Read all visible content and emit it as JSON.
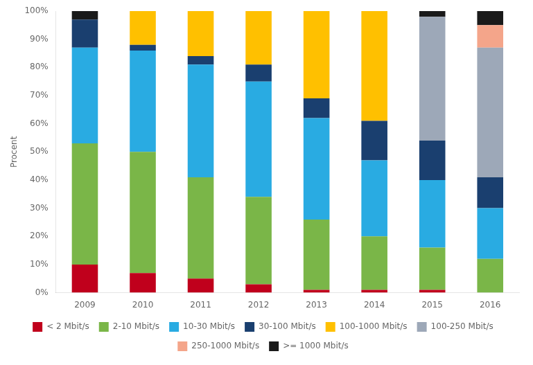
{
  "chart_data": {
    "type": "bar",
    "stacked": true,
    "categories": [
      "2009",
      "2010",
      "2011",
      "2012",
      "2013",
      "2014",
      "2015",
      "2016"
    ],
    "series": [
      {
        "name": "< 2 Mbit/s",
        "color": "#c0001c",
        "values": [
          10,
          7,
          5,
          3,
          1,
          1,
          1,
          0
        ]
      },
      {
        "name": "2-10 Mbit/s",
        "color": "#7ab648",
        "values": [
          43,
          43,
          36,
          31,
          25,
          19,
          15,
          12
        ]
      },
      {
        "name": "10-30 Mbit/s",
        "color": "#29abe2",
        "values": [
          34,
          36,
          40,
          41,
          36,
          27,
          24,
          18
        ]
      },
      {
        "name": "30-100 Mbit/s",
        "color": "#1a3f6f",
        "values": [
          10,
          2,
          3,
          6,
          7,
          14,
          14,
          11
        ]
      },
      {
        "name": "100-1000 Mbit/s",
        "color": "#ffc000",
        "values": [
          0,
          12,
          16,
          19,
          31,
          39,
          0,
          0
        ]
      },
      {
        "name": "100-250 Mbit/s",
        "color": "#9da8b8",
        "values": [
          0,
          0,
          0,
          0,
          0,
          0,
          44,
          46
        ]
      },
      {
        "name": "250-1000 Mbit/s",
        "color": "#f4a58a",
        "values": [
          0,
          0,
          0,
          0,
          0,
          0,
          0,
          8
        ]
      },
      {
        "name": ">= 1000 Mbit/s",
        "color": "#1a1a1a",
        "values": [
          3,
          0,
          0,
          0,
          0,
          0,
          2,
          5
        ]
      }
    ],
    "ylabel": "Procent",
    "ylim": [
      0,
      100
    ],
    "yticks": [
      {
        "value": 0,
        "label": "0%"
      },
      {
        "value": 10,
        "label": "10%"
      },
      {
        "value": 20,
        "label": "20%"
      },
      {
        "value": 30,
        "label": "30%"
      },
      {
        "value": 40,
        "label": "40%"
      },
      {
        "value": 50,
        "label": "50%"
      },
      {
        "value": 60,
        "label": "60%"
      },
      {
        "value": 70,
        "label": "70%"
      },
      {
        "value": 80,
        "label": "80%"
      },
      {
        "value": 90,
        "label": "90%"
      },
      {
        "value": 100,
        "label": "100%"
      }
    ],
    "grid": false,
    "legend": "bottom"
  }
}
